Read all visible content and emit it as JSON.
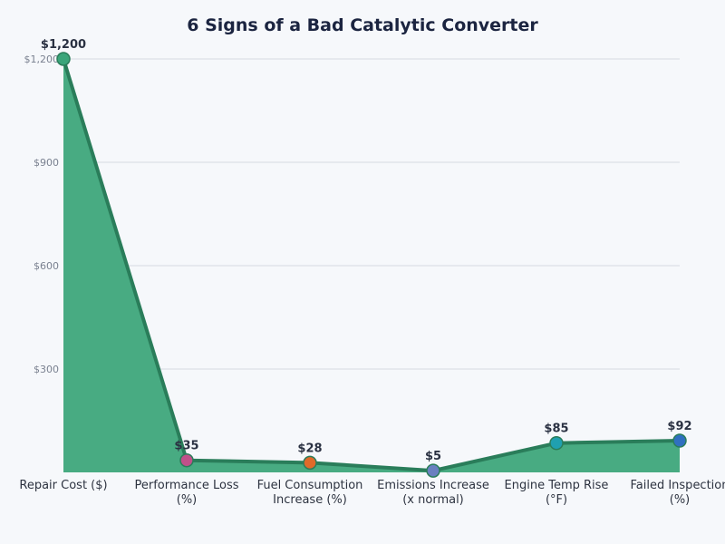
{
  "chart_data": {
    "type": "area",
    "title": "6 Signs of a Bad Catalytic Converter",
    "categories": [
      "Repair Cost ($)",
      "Performance Loss (%)",
      "Fuel Consumption Increase (%)",
      "Emissions Increase (x normal)",
      "Engine Temp Rise (°F)",
      "Failed Inspection (%)"
    ],
    "category_lines": [
      [
        "Repair Cost ($)"
      ],
      [
        "Performance Loss",
        "(%)"
      ],
      [
        "Fuel Consumption",
        "Increase (%)"
      ],
      [
        "Emissions Increase",
        "(x normal)"
      ],
      [
        "Engine Temp Rise",
        "(°F)"
      ],
      [
        "Failed Inspection",
        "(%)"
      ]
    ],
    "values": [
      1200,
      35,
      28,
      5,
      85,
      92
    ],
    "data_labels": [
      "$1,200",
      "$35",
      "$28",
      "$5",
      "$85",
      "$92"
    ],
    "yticks": [
      300,
      600,
      900,
      1200
    ],
    "ytick_labels": [
      "$300",
      "$600",
      "$900",
      "$1,200"
    ],
    "ylim": [
      0,
      1200
    ],
    "grid": true,
    "colors": {
      "fill": "#48ab82",
      "line": "#2a7d5a",
      "markers": [
        "#3aa57a",
        "#c0508a",
        "#e06a2a",
        "#6a80c0",
        "#20a0b0",
        "#3070c0"
      ]
    }
  }
}
